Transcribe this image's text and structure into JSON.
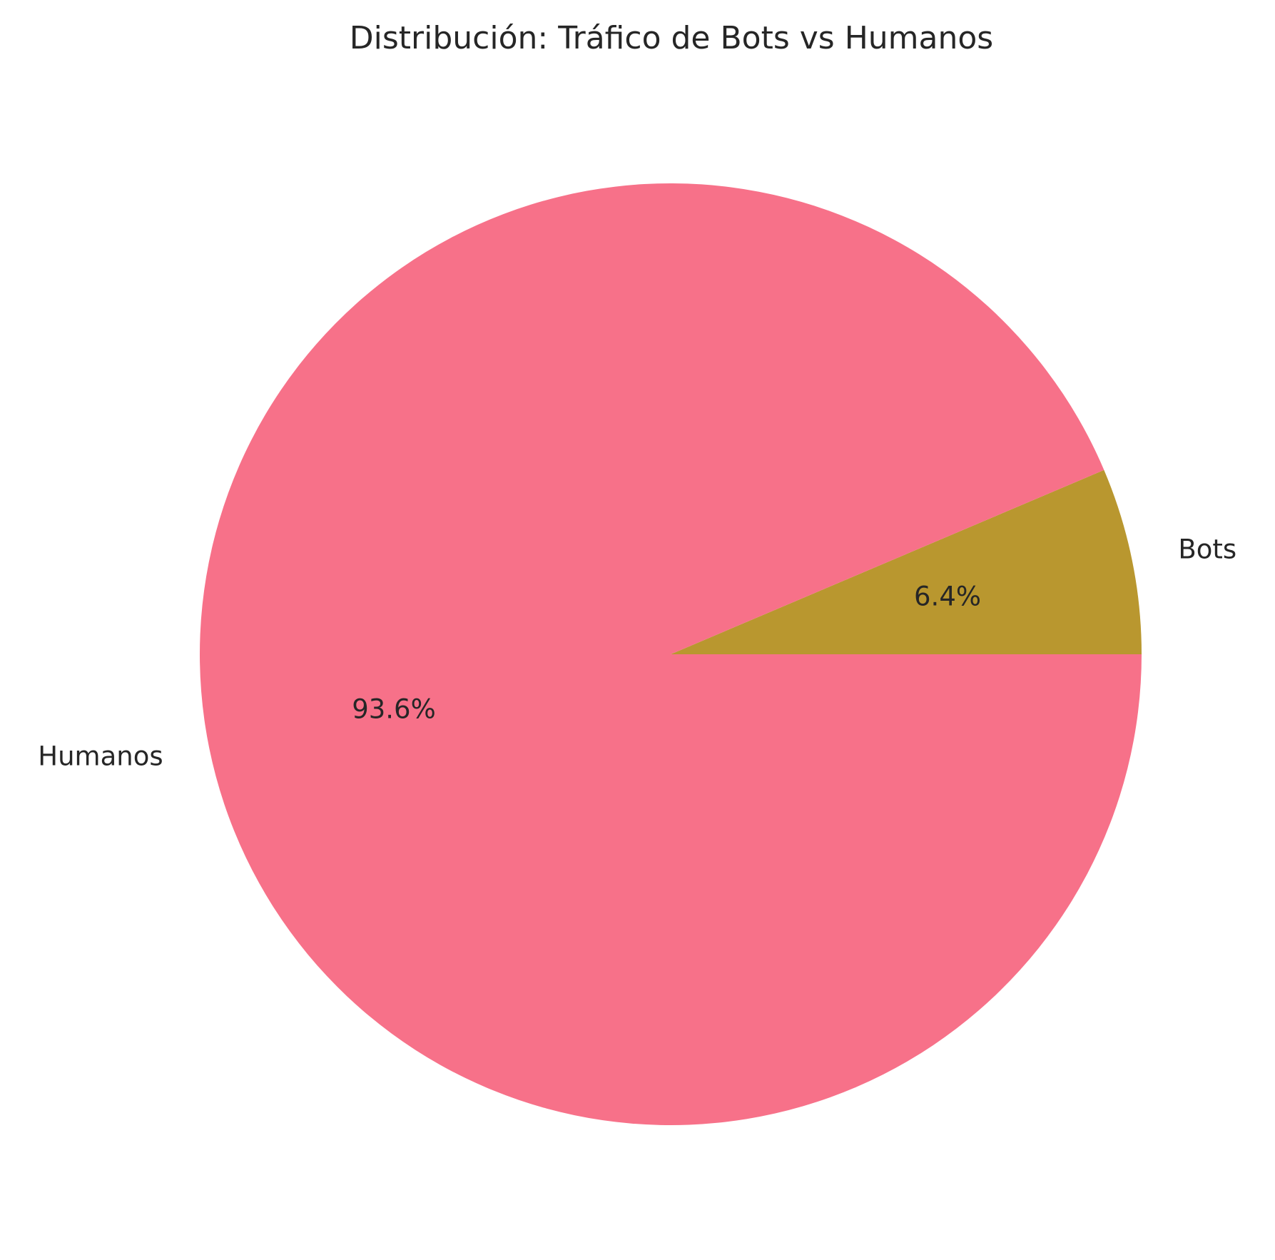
{
  "chart_data": {
    "type": "pie",
    "title": "Distribución: Tráfico de Bots vs Humanos",
    "slices": [
      {
        "label": "Bots",
        "value": 6.4,
        "pct_text": "6.4%",
        "color": "#b9972f"
      },
      {
        "label": "Humanos",
        "value": 93.6,
        "pct_text": "93.6%",
        "color": "#f77189"
      }
    ],
    "start_angle_deg": 0,
    "direction": "counterclockwise",
    "legend": "none"
  }
}
